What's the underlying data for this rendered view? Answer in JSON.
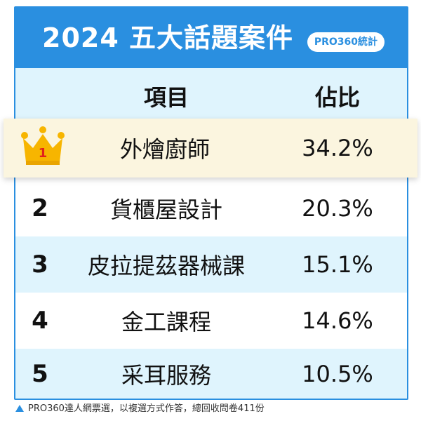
{
  "header": {
    "title": "2024 五大話題案件",
    "badge": "PRO360統計"
  },
  "columns": {
    "item": "項目",
    "percent": "佔比"
  },
  "rows": [
    {
      "rank": "1",
      "item": "外燴廚師",
      "percent": "34.2%"
    },
    {
      "rank": "2",
      "item": "貨櫃屋設計",
      "percent": "20.3%"
    },
    {
      "rank": "3",
      "item": "皮拉提茲器械課",
      "percent": "15.1%"
    },
    {
      "rank": "4",
      "item": "金工課程",
      "percent": "14.6%"
    },
    {
      "rank": "5",
      "item": "采耳服務",
      "percent": "10.5%"
    }
  ],
  "footnote": "PRO360達人網票選，以複選方式作答，總回收問卷411份",
  "icons": {
    "top_rank": "crown-icon",
    "footnote_marker": "triangle-up-icon"
  },
  "colors": {
    "primary": "#2a8fe0",
    "row_light": "#dff4fd",
    "highlight": "#fbf5df",
    "crown": "#f7b500",
    "crown_number": "#e2231a"
  }
}
